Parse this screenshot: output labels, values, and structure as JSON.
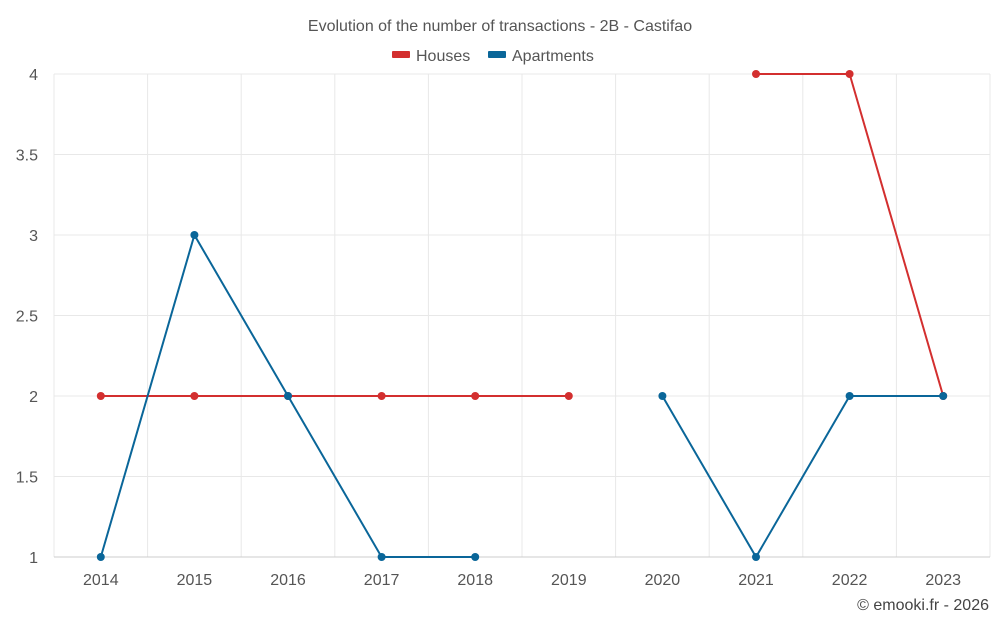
{
  "chart_data": {
    "type": "line",
    "title": "Evolution of the number of transactions - 2B - Castifao",
    "categories": [
      "2014",
      "2015",
      "2016",
      "2017",
      "2018",
      "2019",
      "2020",
      "2021",
      "2022",
      "2023"
    ],
    "ylim": [
      1,
      4
    ],
    "yticks": [
      1,
      1.5,
      2,
      2.5,
      3,
      3.5,
      4
    ],
    "xlabel": "",
    "ylabel": "",
    "grid": true,
    "legend_position": "top-center",
    "series": [
      {
        "name": "Houses",
        "color": "#d32f2f",
        "values": [
          2,
          2,
          2,
          2,
          2,
          2,
          null,
          4,
          4,
          2
        ]
      },
      {
        "name": "Apartments",
        "color": "#0a6699",
        "values": [
          1,
          3,
          2,
          1,
          1,
          null,
          2,
          1,
          2,
          2
        ]
      }
    ]
  },
  "credit": "© emooki.fr - 2026"
}
